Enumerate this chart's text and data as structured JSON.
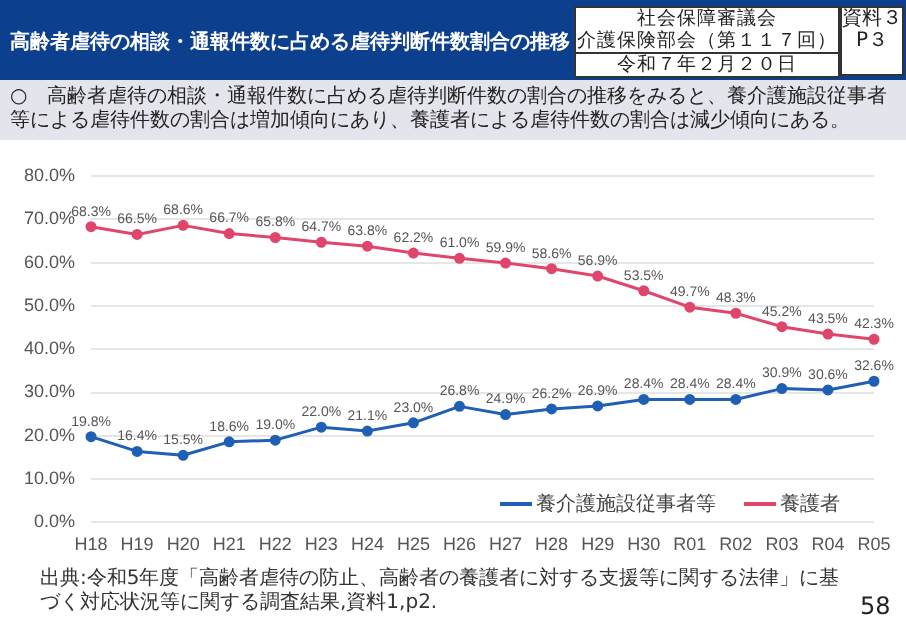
{
  "chart_data": {
    "type": "line",
    "title": "高齢者虐待の相談・通報件数に占める虐待判断件数割合の推移",
    "subtitle": "○　高齢者虐待の相談・通報件数に占める虐待判断件数の割合の推移をみると、養介護施設従事者等による虐待件数の割合は増加傾向にあり、養護者による虐待件数の割合は減少傾向にある。",
    "categories": [
      "H18",
      "H19",
      "H20",
      "H21",
      "H22",
      "H23",
      "H24",
      "H25",
      "H26",
      "H27",
      "H28",
      "H29",
      "H30",
      "R01",
      "R02",
      "R03",
      "R04",
      "R05"
    ],
    "series": [
      {
        "name": "養介護施設従事者等",
        "color": "#1f5fb4",
        "values": [
          19.8,
          16.4,
          15.5,
          18.6,
          19.0,
          22.0,
          21.1,
          23.0,
          26.8,
          24.9,
          26.2,
          26.9,
          28.4,
          28.4,
          28.4,
          30.9,
          30.6,
          32.6
        ],
        "value_labels": [
          "19.8%",
          "16.4%",
          "15.5%",
          "18.6%",
          "19.0%",
          "22.0%",
          "21.1%",
          "23.0%",
          "26.8%",
          "24.9%",
          "26.2%",
          "26.9%",
          "28.4%",
          "28.4%",
          "28.4%",
          "30.9%",
          "30.6%",
          "32.6%"
        ]
      },
      {
        "name": "養護者",
        "color": "#e0456b",
        "values": [
          68.3,
          66.5,
          68.6,
          66.7,
          65.8,
          64.7,
          63.8,
          62.2,
          61.0,
          59.9,
          58.6,
          56.9,
          53.5,
          49.7,
          48.3,
          45.2,
          43.5,
          42.3
        ],
        "value_labels": [
          "68.3%",
          "66.5%",
          "68.6%",
          "66.7%",
          "65.8%",
          "64.7%",
          "63.8%",
          "62.2%",
          "61.0%",
          "59.9%",
          "58.6%",
          "56.9%",
          "53.5%",
          "49.7%",
          "48.3%",
          "45.2%",
          "43.5%",
          "42.3%"
        ]
      }
    ],
    "ylim": [
      0,
      80
    ],
    "yticks": [
      {
        "value": 0,
        "label": "0.0%"
      },
      {
        "value": 10,
        "label": "10.0%"
      },
      {
        "value": 20,
        "label": "20.0%"
      },
      {
        "value": 30,
        "label": "30.0%"
      },
      {
        "value": 40,
        "label": "40.0%"
      },
      {
        "value": 50,
        "label": "50.0%"
      },
      {
        "value": 60,
        "label": "60.0%"
      },
      {
        "value": 70,
        "label": "70.0%"
      },
      {
        "value": 80,
        "label": "80.0%"
      }
    ],
    "grid": "y",
    "legend": "bottom right",
    "marker": "circle",
    "line_style": "solid",
    "annotations": [
      "社会保障審議会",
      "介護保険部会（第１１７回）",
      "令和７年２月２０日",
      "資料３ P３",
      "出典:令和5年度「高齢者虐待の防止、高齢者の養護者に対する支援等に関する法律」に基づく対応状況等に関する調査結果,資料1,p2.",
      "58"
    ]
  }
}
